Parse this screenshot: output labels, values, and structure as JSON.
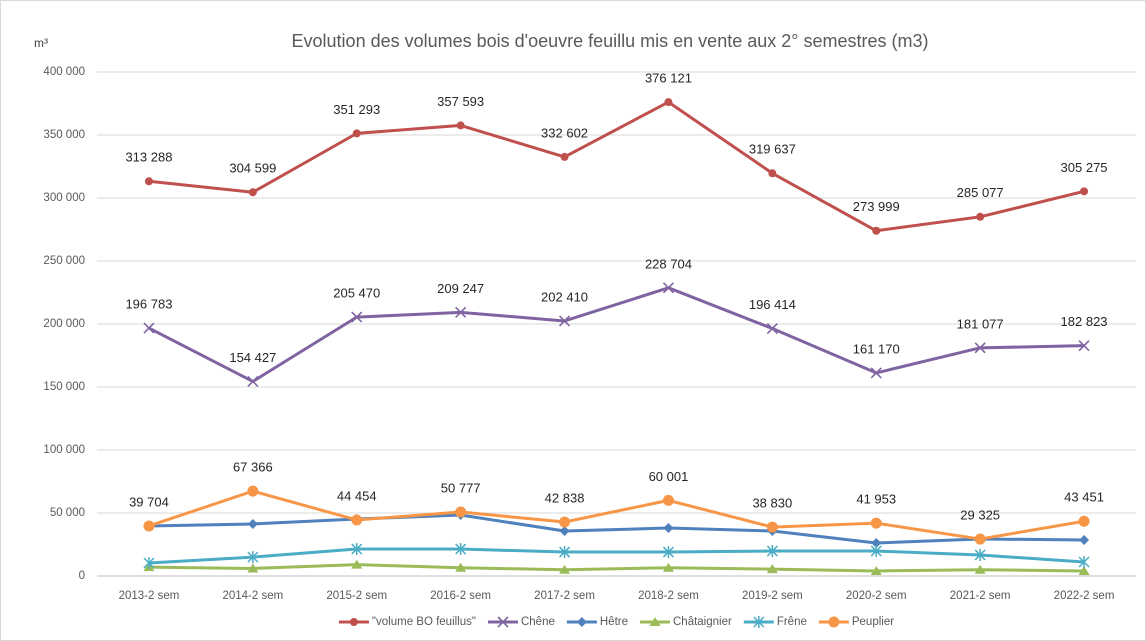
{
  "chart_data": {
    "type": "line",
    "title": "Evolution des volumes bois d'oeuvre feuillu mis en vente aux 2° semestres (m3)",
    "y_axis_label": "m³",
    "categories": [
      "2013-2 sem",
      "2014-2 sem",
      "2015-2 sem",
      "2016-2 sem",
      "2017-2 sem",
      "2018-2 sem",
      "2019-2 sem",
      "2020-2 sem",
      "2021-2 sem",
      "2022-2 sem"
    ],
    "ylim": [
      0,
      400000
    ],
    "yticks": [
      0,
      {
        "value": 50000,
        "label": "50 000"
      },
      {
        "value": 100000,
        "label": "100 000"
      },
      {
        "value": 150000,
        "label": "150 000"
      },
      {
        "value": 200000,
        "label": "200 000"
      },
      {
        "value": 250000,
        "label": "250 000"
      },
      {
        "value": 300000,
        "label": "300 000"
      },
      {
        "value": 350000,
        "label": "350 000"
      },
      {
        "value": 400000,
        "label": "400 000"
      }
    ],
    "grid": true,
    "legend": "bottom",
    "series": [
      {
        "name": "\"volume BO feuillus\"",
        "color": "#c0504d",
        "marker": "circle",
        "values": [
          313288,
          304599,
          351293,
          357593,
          332602,
          376121,
          319637,
          273999,
          285077,
          305275
        ],
        "value_labels": [
          "313 288",
          "304 599",
          "351 293",
          "357 593",
          "332 602",
          "376 121",
          "319 637",
          "273 999",
          "285 077",
          "305 275"
        ]
      },
      {
        "name": "Chêne",
        "color": "#8064a2",
        "marker": "x",
        "values": [
          196783,
          154427,
          205470,
          209247,
          202410,
          228704,
          196414,
          161170,
          181077,
          182823
        ],
        "value_labels": [
          "196 783",
          "154 427",
          "205 470",
          "209 247",
          "202 410",
          "228 704",
          "196 414",
          "161 170",
          "181 077",
          "182 823"
        ]
      },
      {
        "name": "Hêtre",
        "color": "#4f81bd",
        "marker": "diamond",
        "values": [
          39700,
          41300,
          45200,
          48400,
          35700,
          38100,
          35700,
          26200,
          29400,
          28600
        ]
      },
      {
        "name": "Châtaignier",
        "color": "#9bbb59",
        "marker": "triangle",
        "values": [
          7000,
          6000,
          9000,
          6500,
          5000,
          6500,
          5500,
          4000,
          5000,
          4000
        ]
      },
      {
        "name": "Frêne",
        "color": "#4bacc6",
        "marker": "star",
        "values": [
          10300,
          15000,
          21400,
          21400,
          19000,
          19000,
          19800,
          19800,
          16700,
          11100
        ]
      },
      {
        "name": "Peuplier",
        "color": "#f79646",
        "marker": "bigcircle",
        "values": [
          39704,
          67366,
          44454,
          50777,
          42838,
          60001,
          38830,
          41953,
          29325,
          43451
        ],
        "value_labels": [
          "39 704",
          "67 366",
          "44 454",
          "50 777",
          "42 838",
          "60 001",
          "38 830",
          "41 953",
          "29 325",
          "43 451"
        ]
      }
    ]
  }
}
